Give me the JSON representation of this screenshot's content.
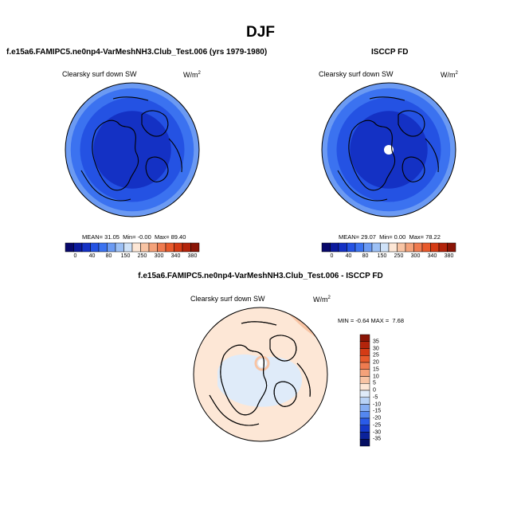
{
  "figure": {
    "title": "DJF",
    "colors": {
      "blue_scale": [
        "#08086b",
        "#0c1a9e",
        "#1431c4",
        "#2452e3",
        "#3b72f0",
        "#6b9af3",
        "#9cc0f5",
        "#cfe2f8"
      ],
      "diff_scale": [
        "#050f63",
        "#0b229a",
        "#1539c9",
        "#2a5be8",
        "#5487f0",
        "#86aef3",
        "#b8d2f6",
        "#dfebf9",
        "#fde7d6",
        "#f8c4a4",
        "#f4a27a",
        "#ef7b50",
        "#e85a2c",
        "#d43b15",
        "#b3240b",
        "#8a1506"
      ],
      "outline": "#000000"
    }
  },
  "panels": {
    "model": {
      "title": "f.e15a6.FAMIPC5.ne0np4-VarMeshNH3.Club_Test.006 (yrs 1979-1980)",
      "variable": "Clearsky surf down SW",
      "units_base": "W/m",
      "units_exp": "2",
      "mean_label": "MEAN=",
      "mean": "31.05",
      "min_label": "Min=",
      "min": "-0.00",
      "max_label": "Max=",
      "max": "89.40"
    },
    "obs": {
      "title": "ISCCP FD",
      "variable": "Clearsky surf down SW",
      "units_base": "W/m",
      "units_exp": "2",
      "mean_label": "MEAN=",
      "mean": "29.07",
      "min_label": "Min=",
      "min": "0.00",
      "max_label": "Max=",
      "max": "78.22"
    },
    "diff": {
      "title": "f.e15a6.FAMIPC5.ne0np4-VarMeshNH3.Club_Test.006 - ISCCP FD",
      "variable": "Clearsky surf down SW",
      "units_base": "W/m",
      "units_exp": "2",
      "min_label": "MIN =",
      "min": "-0.64",
      "max_label": "MAX =",
      "max": "7.68"
    }
  },
  "chart_data": [
    {
      "type": "heatmap",
      "projection": "polar-stereographic (north pole)",
      "title": "f.e15a6.FAMIPC5.ne0np4-VarMeshNH3.Club_Test.006 (yrs 1979-1980)",
      "variable": "Clearsky surf down SW",
      "units": "W/m2",
      "mean": 31.05,
      "min": -0.0,
      "max": 89.4,
      "colorbar_levels": [
        0,
        40,
        80,
        150,
        250,
        300,
        340,
        380
      ],
      "colorbar_labels": [
        "0",
        "40",
        "80",
        "150",
        "250",
        "300",
        "340",
        "380"
      ]
    },
    {
      "type": "heatmap",
      "projection": "polar-stereographic (north pole)",
      "title": "ISCCP FD",
      "variable": "Clearsky surf down SW",
      "units": "W/m2",
      "mean": 29.07,
      "min": 0.0,
      "max": 78.22,
      "colorbar_levels": [
        0,
        40,
        80,
        150,
        250,
        300,
        340,
        380
      ],
      "colorbar_labels": [
        "0",
        "40",
        "80",
        "150",
        "250",
        "300",
        "340",
        "380"
      ]
    },
    {
      "type": "heatmap",
      "projection": "polar-stereographic (north pole)",
      "title": "f.e15a6.FAMIPC5.ne0np4-VarMeshNH3.Club_Test.006 - ISCCP FD",
      "variable": "Clearsky surf down SW",
      "units": "W/m2",
      "min": -0.64,
      "max": 7.68,
      "colorbar_levels": [
        -35,
        -30,
        -25,
        -20,
        -15,
        -10,
        -5,
        0,
        5,
        10,
        15,
        20,
        25,
        30,
        35
      ],
      "colorbar_labels": [
        "35",
        "30",
        "25",
        "20",
        "15",
        "10",
        "5",
        "0",
        "-5",
        "-10",
        "-15",
        "-20",
        "-25",
        "-30",
        "-35"
      ]
    }
  ]
}
